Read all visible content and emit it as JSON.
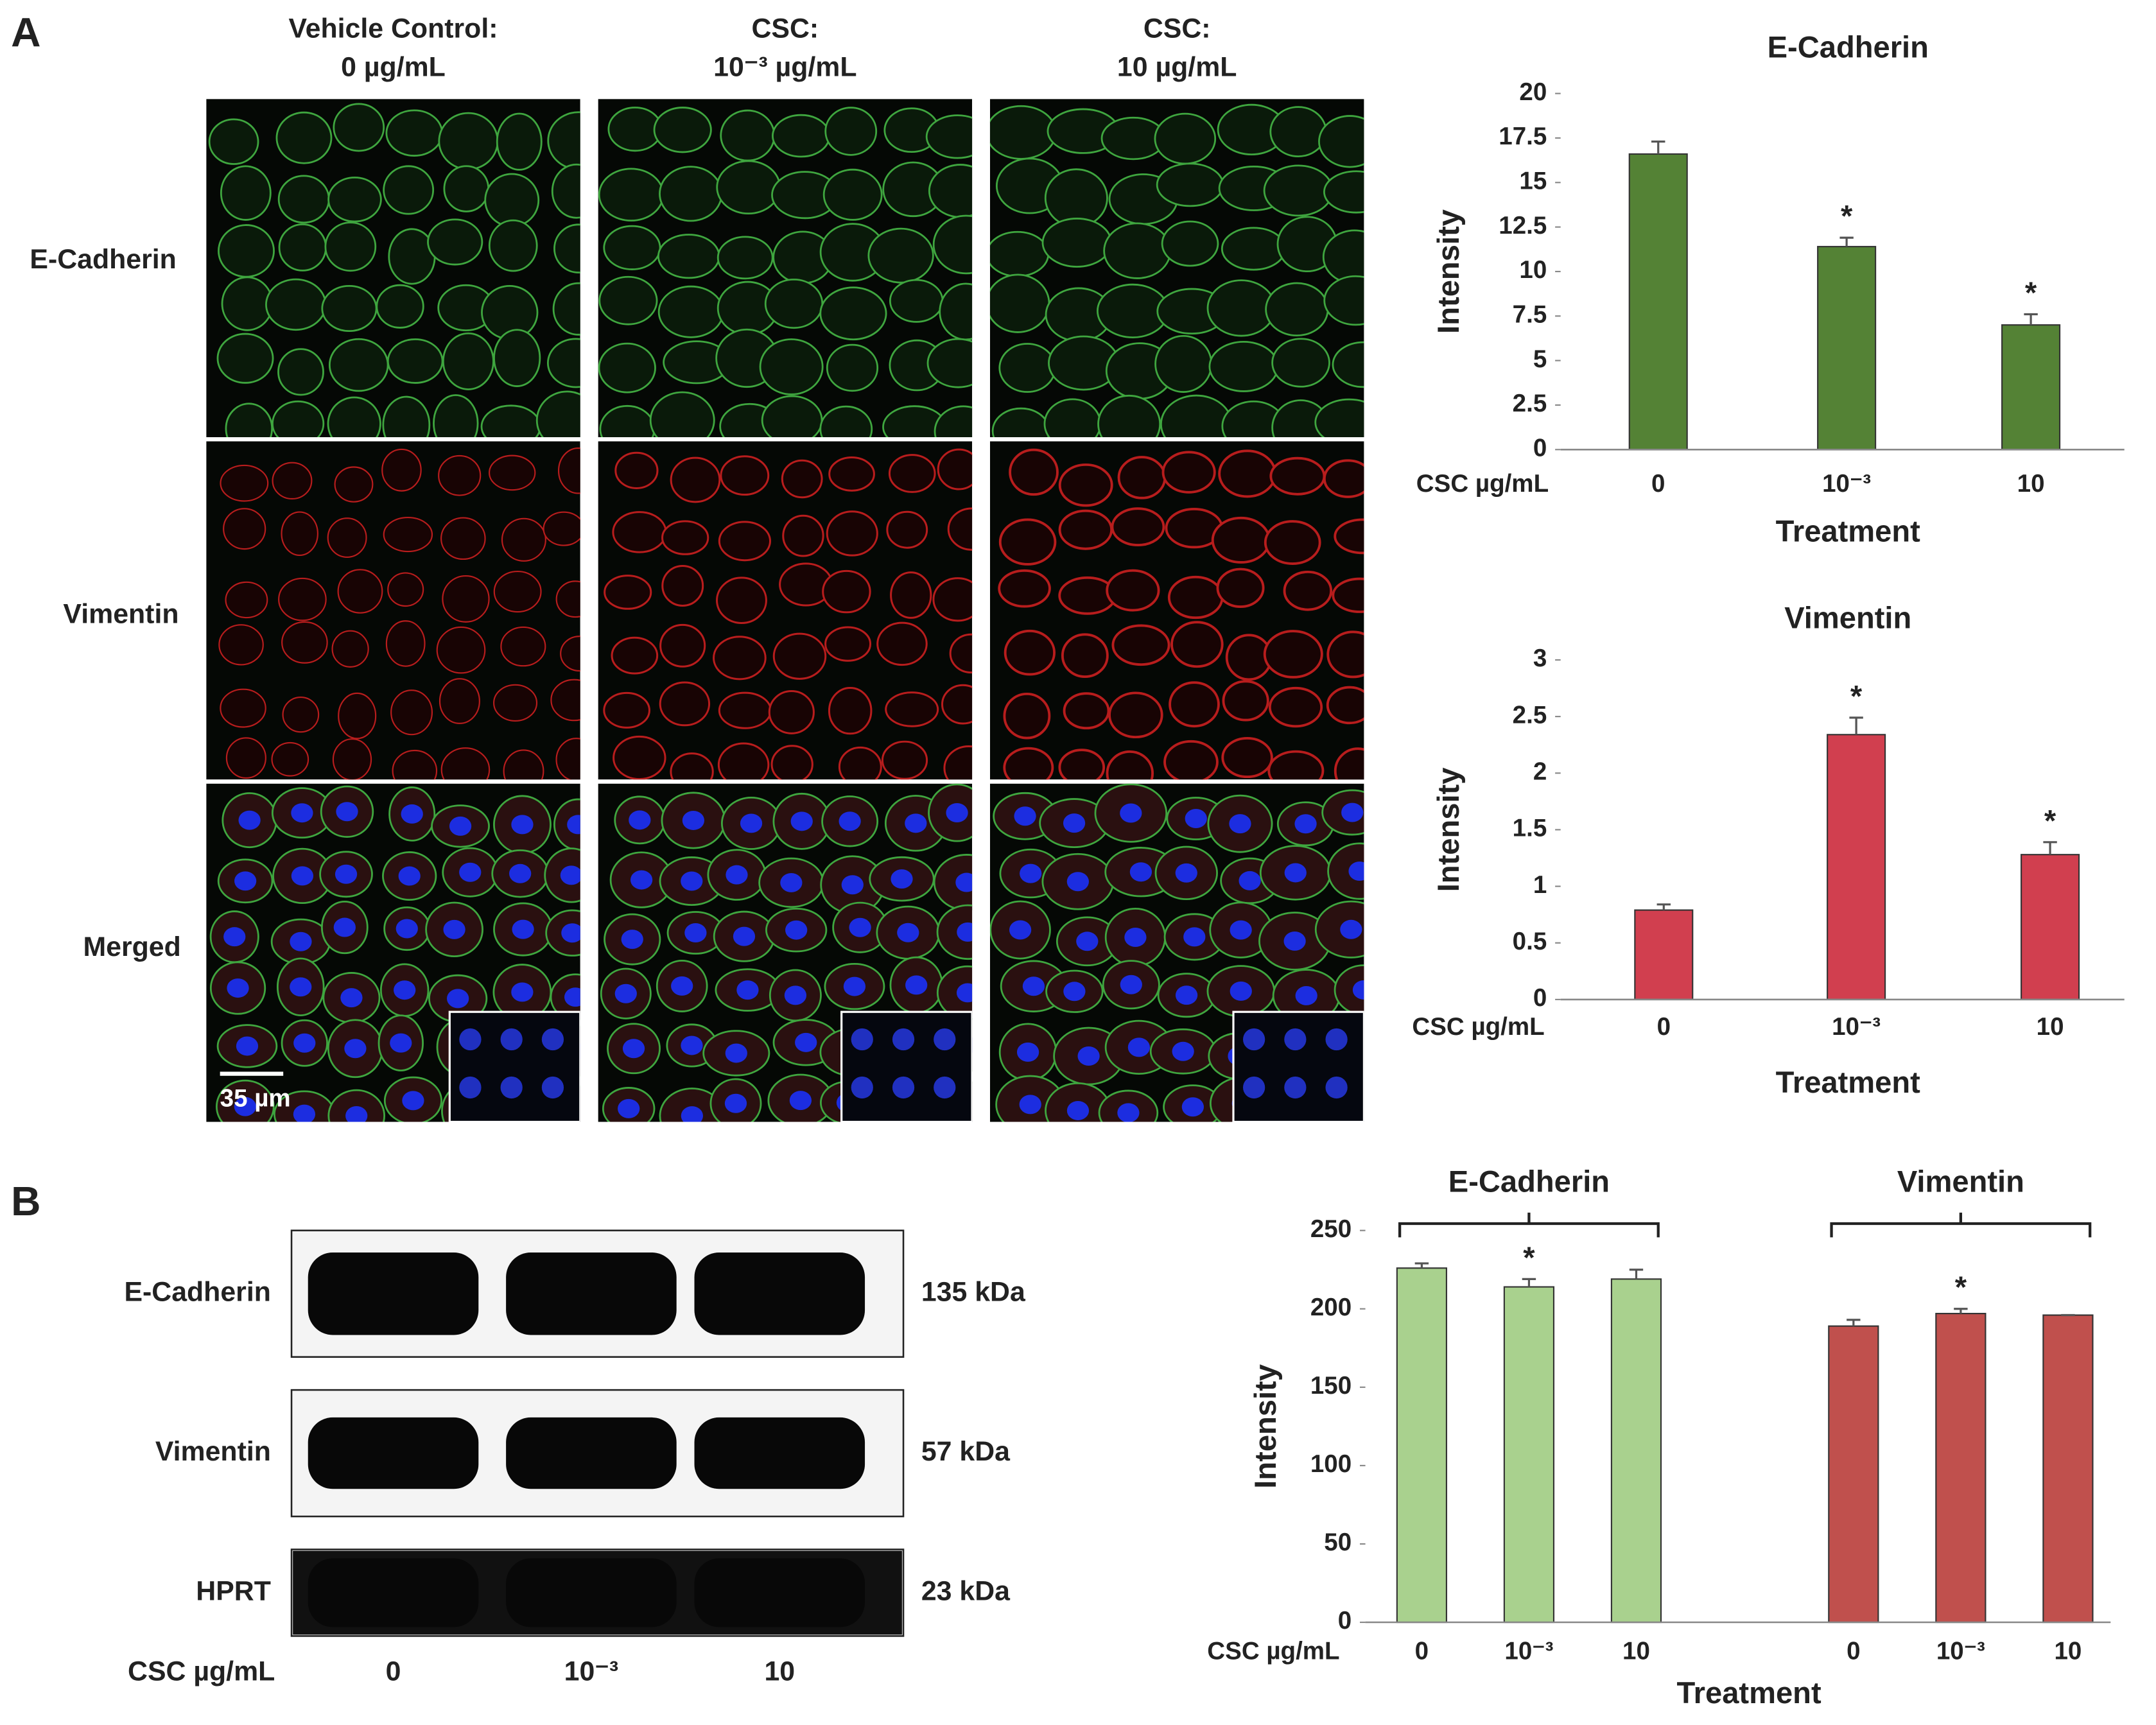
{
  "panels": {
    "a": {
      "label": "A",
      "column_headers": [
        [
          "Vehicle Control:",
          "0 µg/mL"
        ],
        [
          "CSC:",
          "10⁻³ µg/mL"
        ],
        [
          "CSC:",
          "10 µg/mL"
        ]
      ],
      "row_labels": [
        "E-Cadherin",
        "Vimentin",
        "Merged"
      ],
      "scale_bar": "35 µm"
    },
    "b": {
      "label": "B",
      "blot_rows": [
        {
          "protein": "E-Cadherin",
          "size": "135 kDa"
        },
        {
          "protein": "Vimentin",
          "size": "57 kDa"
        },
        {
          "protein": "HPRT",
          "size": "23 kDa"
        }
      ],
      "dose_label": "CSC µg/mL",
      "lanes": [
        "0",
        "10⁻³",
        "10"
      ]
    }
  },
  "chart_data": [
    {
      "type": "bar",
      "title": "E-Cadherin",
      "x_label": "Treatment",
      "y_label": "Intensity",
      "x_prefix": "CSC µg/mL",
      "categories": [
        "0",
        "10⁻³",
        "10"
      ],
      "values": [
        16.6,
        11.4,
        7.0
      ],
      "errors": [
        0.7,
        0.5,
        0.6
      ],
      "significant": [
        false,
        true,
        true
      ],
      "significance_label": "*",
      "color": "#548235",
      "ylim": [
        0,
        20
      ],
      "yticks": [
        0,
        2.5,
        5,
        7.5,
        10,
        12.5,
        15,
        17.5,
        20
      ]
    },
    {
      "type": "bar",
      "title": "Vimentin",
      "x_label": "Treatment",
      "y_label": "Intensity",
      "x_prefix": "CSC µg/mL",
      "categories": [
        "0",
        "10⁻³",
        "10"
      ],
      "values": [
        0.79,
        2.34,
        1.28
      ],
      "errors": [
        0.05,
        0.15,
        0.11
      ],
      "significant": [
        false,
        true,
        true
      ],
      "significance_label": "*",
      "color": "#d13f4f",
      "ylim": [
        0,
        3
      ],
      "yticks": [
        0,
        0.5,
        1,
        1.5,
        2,
        2.5,
        3
      ]
    },
    {
      "type": "grouped_bar",
      "x_label": "Treatment",
      "y_label": "Intensity",
      "x_prefix": "CSC µg/mL",
      "groups": [
        {
          "name": "E-Cadherin",
          "color": "#a9d18e",
          "categories": [
            "0",
            "10⁻³",
            "10"
          ],
          "values": [
            226,
            214,
            219
          ],
          "errors": [
            3,
            5,
            6
          ],
          "significant": [
            false,
            true,
            false
          ]
        },
        {
          "name": "Vimentin",
          "color": "#c0504d",
          "categories": [
            "0",
            "10⁻³",
            "10"
          ],
          "values": [
            189,
            197,
            196
          ],
          "errors": [
            4,
            3,
            0
          ],
          "significant": [
            false,
            true,
            false
          ]
        }
      ],
      "significance_label": "*",
      "ylim": [
        0,
        250
      ],
      "yticks": [
        0,
        50,
        100,
        150,
        200,
        250
      ]
    }
  ]
}
